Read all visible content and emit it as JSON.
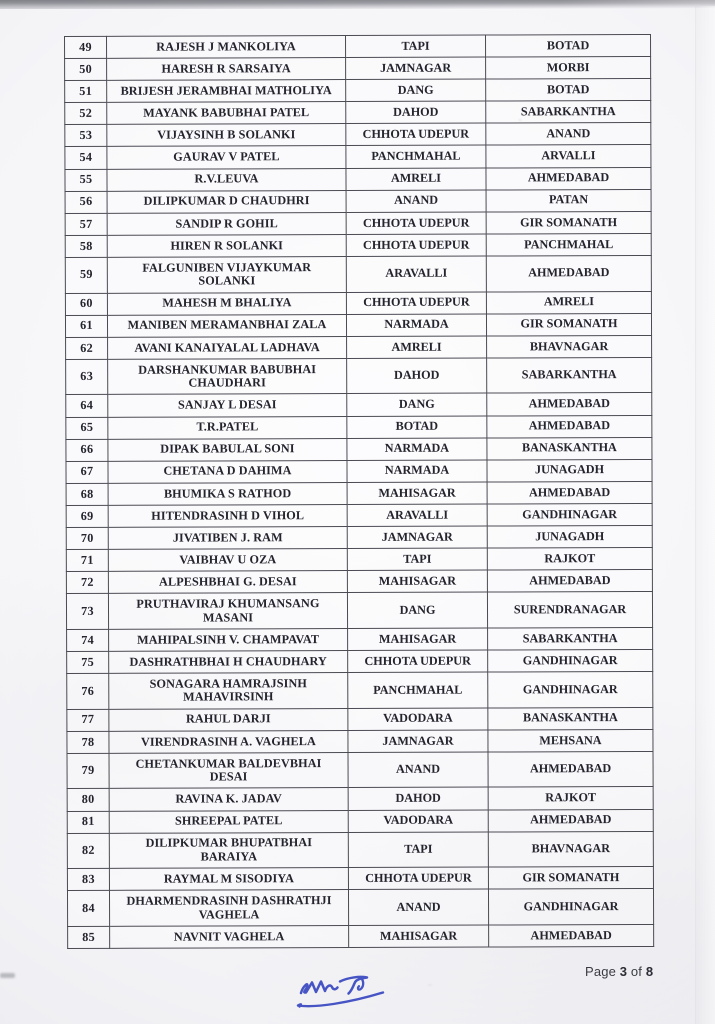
{
  "table": {
    "rows": [
      {
        "no": "49",
        "name": "RAJESH J MANKOLIYA",
        "place_a": "TAPI",
        "place_b": "BOTAD"
      },
      {
        "no": "50",
        "name": "HARESH R SARSAIYA",
        "place_a": "JAMNAGAR",
        "place_b": "MORBI"
      },
      {
        "no": "51",
        "name": "BRIJESH JERAMBHAI MATHOLIYA",
        "place_a": "DANG",
        "place_b": "BOTAD"
      },
      {
        "no": "52",
        "name": "MAYANK BABUBHAI PATEL",
        "place_a": "DAHOD",
        "place_b": "SABARKANTHA"
      },
      {
        "no": "53",
        "name": "VIJAYSINH B SOLANKI",
        "place_a": "CHHOTA UDEPUR",
        "place_b": "ANAND"
      },
      {
        "no": "54",
        "name": "GAURAV V PATEL",
        "place_a": "PANCHMAHAL",
        "place_b": "ARVALLI"
      },
      {
        "no": "55",
        "name": "R.V.LEUVA",
        "place_a": "AMRELI",
        "place_b": "AHMEDABAD"
      },
      {
        "no": "56",
        "name": "DILIPKUMAR D CHAUDHRI",
        "place_a": "ANAND",
        "place_b": "PATAN"
      },
      {
        "no": "57",
        "name": "SANDIP R GOHIL",
        "place_a": "CHHOTA UDEPUR",
        "place_b": "GIR SOMANATH"
      },
      {
        "no": "58",
        "name": "HIREN R SOLANKI",
        "place_a": "CHHOTA UDEPUR",
        "place_b": "PANCHMAHAL"
      },
      {
        "no": "59",
        "name": "FALGUNIBEN VIJAYKUMAR\nSOLANKI",
        "place_a": "ARAVALLI",
        "place_b": "AHMEDABAD"
      },
      {
        "no": "60",
        "name": "MAHESH M BHALIYA",
        "place_a": "CHHOTA UDEPUR",
        "place_b": "AMRELI"
      },
      {
        "no": "61",
        "name": "MANIBEN MERAMANBHAI ZALA",
        "place_a": "NARMADA",
        "place_b": "GIR SOMANATH"
      },
      {
        "no": "62",
        "name": "AVANI KANAIYALAL LADHAVA",
        "place_a": "AMRELI",
        "place_b": "BHAVNAGAR"
      },
      {
        "no": "63",
        "name": "DARSHANKUMAR BABUBHAI\nCHAUDHARI",
        "place_a": "DAHOD",
        "place_b": "SABARKANTHA"
      },
      {
        "no": "64",
        "name": "SANJAY L DESAI",
        "place_a": "DANG",
        "place_b": "AHMEDABAD"
      },
      {
        "no": "65",
        "name": "T.R.PATEL",
        "place_a": "BOTAD",
        "place_b": "AHMEDABAD"
      },
      {
        "no": "66",
        "name": "DIPAK BABULAL SONI",
        "place_a": "NARMADA",
        "place_b": "BANASKANTHA"
      },
      {
        "no": "67",
        "name": "CHETANA D DAHIMA",
        "place_a": "NARMADA",
        "place_b": "JUNAGADH"
      },
      {
        "no": "68",
        "name": "BHUMIKA S RATHOD",
        "place_a": "MAHISAGAR",
        "place_b": "AHMEDABAD"
      },
      {
        "no": "69",
        "name": "HITENDRASINH D VIHOL",
        "place_a": "ARAVALLI",
        "place_b": "GANDHINAGAR"
      },
      {
        "no": "70",
        "name": "JIVATIBEN J. RAM",
        "place_a": "JAMNAGAR",
        "place_b": "JUNAGADH"
      },
      {
        "no": "71",
        "name": "VAIBHAV U OZA",
        "place_a": "TAPI",
        "place_b": "RAJKOT"
      },
      {
        "no": "72",
        "name": "ALPESHBHAI G. DESAI",
        "place_a": "MAHISAGAR",
        "place_b": "AHMEDABAD"
      },
      {
        "no": "73",
        "name": "PRUTHAVIRAJ KHUMANSANG\nMASANI",
        "place_a": "DANG",
        "place_b": "SURENDRANAGAR"
      },
      {
        "no": "74",
        "name": "MAHIPALSINH V. CHAMPAVAT",
        "place_a": "MAHISAGAR",
        "place_b": "SABARKANTHA"
      },
      {
        "no": "75",
        "name": "DASHRATHBHAI H CHAUDHARY",
        "place_a": "CHHOTA UDEPUR",
        "place_b": "GANDHINAGAR"
      },
      {
        "no": "76",
        "name": "SONAGARA HAMRAJSINH\nMAHAVIRSINH",
        "place_a": "PANCHMAHAL",
        "place_b": "GANDHINAGAR"
      },
      {
        "no": "77",
        "name": "RAHUL DARJI",
        "place_a": "VADODARA",
        "place_b": "BANASKANTHA"
      },
      {
        "no": "78",
        "name": "VIRENDRASINH A. VAGHELA",
        "place_a": "JAMNAGAR",
        "place_b": "MEHSANA"
      },
      {
        "no": "79",
        "name": "CHETANKUMAR BALDEVBHAI\nDESAI",
        "place_a": "ANAND",
        "place_b": "AHMEDABAD"
      },
      {
        "no": "80",
        "name": "RAVINA K. JADAV",
        "place_a": "DAHOD",
        "place_b": "RAJKOT"
      },
      {
        "no": "81",
        "name": "SHREEPAL PATEL",
        "place_a": "VADODARA",
        "place_b": "AHMEDABAD"
      },
      {
        "no": "82",
        "name": "DILIPKUMAR BHUPATBHAI\nBARAIYA",
        "place_a": "TAPI",
        "place_b": "BHAVNAGAR"
      },
      {
        "no": "83",
        "name": "RAYMAL M SISODIYA",
        "place_a": "CHHOTA UDEPUR",
        "place_b": "GIR SOMANATH"
      },
      {
        "no": "84",
        "name": "DHARMENDRASINH DASHRATHJI\nVAGHELA",
        "place_a": "ANAND",
        "place_b": "GANDHINAGAR"
      },
      {
        "no": "85",
        "name": "NAVNIT VAGHELA",
        "place_a": "MAHISAGAR",
        "place_b": "AHMEDABAD"
      }
    ]
  },
  "footer": {
    "page_word": "Page",
    "page_number": "3",
    "of_word": "of",
    "total_pages": "8"
  },
  "signature": {
    "ink_color": "#4654c4"
  }
}
